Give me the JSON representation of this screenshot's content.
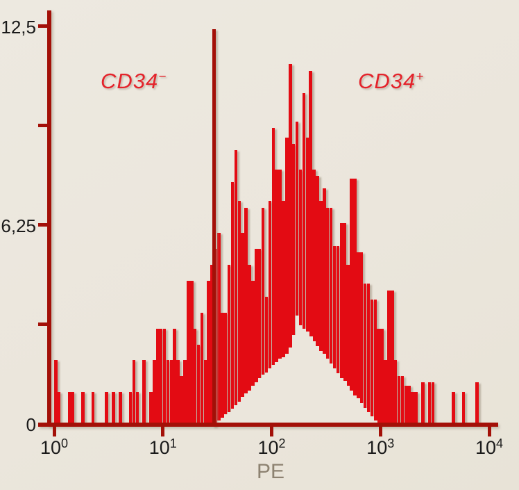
{
  "colors": {
    "background": "#ebe6dc",
    "bar_red": "#e30b13",
    "axis_dark_red": "#a31008",
    "label_red": "#e4232b",
    "tick_text": "#1a1a1a",
    "x_title_gray": "#8d8271"
  },
  "annotations": {
    "negative": {
      "base": "CD34",
      "sup": "−"
    },
    "positive": {
      "base": "CD34",
      "sup": "+"
    }
  },
  "axis_labels": {
    "x_title": "PE"
  },
  "chart_data": {
    "type": "bar",
    "subtype": "flow-cytometry-histogram",
    "title": "",
    "xlabel": "PE",
    "ylabel": "",
    "x_scale": "log10",
    "x_range_exponents": [
      0,
      4
    ],
    "ylim": [
      0,
      12.5
    ],
    "grid": false,
    "legend": "none",
    "y_ticks": [
      {
        "value": 12.5,
        "label": "12,5"
      },
      {
        "value": 9.375,
        "label": ""
      },
      {
        "value": 6.25,
        "label": "6,25"
      },
      {
        "value": 3.125,
        "label": ""
      },
      {
        "value": 0,
        "label": "0"
      }
    ],
    "x_ticks": [
      {
        "base": "10",
        "exponent": "0"
      },
      {
        "base": "10",
        "exponent": "1"
      },
      {
        "base": "10",
        "exponent": "2"
      },
      {
        "base": "10",
        "exponent": "3"
      },
      {
        "base": "10",
        "exponent": "4"
      }
    ],
    "gate": {
      "x_exponent": 1.47,
      "region_left_label": "CD34−",
      "region_right_label": "CD34+"
    },
    "channels_per_decade": 32,
    "series": [
      {
        "name": "PE fluorescence histogram (counts per channel)",
        "points": [
          [
            0,
            2
          ],
          [
            1,
            1
          ],
          [
            4,
            1
          ],
          [
            5,
            1
          ],
          [
            8,
            1
          ],
          [
            11,
            1
          ],
          [
            15,
            1
          ],
          [
            17,
            1
          ],
          [
            19,
            1
          ],
          [
            22,
            1
          ],
          [
            23,
            2
          ],
          [
            24,
            1
          ],
          [
            26,
            2
          ],
          [
            28,
            1
          ],
          [
            29,
            2
          ],
          [
            30,
            3
          ],
          [
            31,
            3
          ],
          [
            32,
            3
          ],
          [
            33,
            2
          ],
          [
            34,
            2
          ],
          [
            35,
            3
          ],
          [
            36,
            2
          ],
          [
            37,
            1.5
          ],
          [
            38,
            2
          ],
          [
            39,
            4.5
          ],
          [
            40,
            4.5
          ],
          [
            41,
            3
          ],
          [
            42,
            2.5
          ],
          [
            43,
            3.5
          ],
          [
            44,
            2
          ],
          [
            45,
            4.5
          ],
          [
            46,
            5
          ],
          [
            47,
            5.5
          ],
          [
            48,
            6
          ],
          [
            49,
            3.5
          ],
          [
            50,
            3.5
          ],
          [
            51,
            5
          ],
          [
            52,
            7.6
          ],
          [
            53,
            8.6
          ],
          [
            54,
            7
          ],
          [
            55,
            6
          ],
          [
            56,
            6.8
          ],
          [
            57,
            5
          ],
          [
            58,
            4.5
          ],
          [
            59,
            5.5
          ],
          [
            60,
            5.5
          ],
          [
            61,
            6.8
          ],
          [
            62,
            4
          ],
          [
            63,
            7
          ],
          [
            64,
            9.3
          ],
          [
            65,
            8
          ],
          [
            66,
            8
          ],
          [
            67,
            7
          ],
          [
            68,
            9
          ],
          [
            69,
            11.3
          ],
          [
            70,
            8.8
          ],
          [
            71,
            9.5
          ],
          [
            72,
            8
          ],
          [
            73,
            10.4
          ],
          [
            74,
            9
          ],
          [
            75,
            11.1
          ],
          [
            76,
            8
          ],
          [
            77,
            7.8
          ],
          [
            78,
            7
          ],
          [
            79,
            7.4
          ],
          [
            80,
            6.8
          ],
          [
            81,
            6.8
          ],
          [
            82,
            5.6
          ],
          [
            83,
            5.6
          ],
          [
            84,
            6.3
          ],
          [
            85,
            6.3
          ],
          [
            86,
            5
          ],
          [
            87,
            7.7
          ],
          [
            88,
            7.7
          ],
          [
            89,
            5.4
          ],
          [
            90,
            5.4
          ],
          [
            91,
            4.4
          ],
          [
            92,
            4.4
          ],
          [
            93,
            3.9
          ],
          [
            94,
            3.9
          ],
          [
            95,
            3
          ],
          [
            96,
            3
          ],
          [
            97,
            2
          ],
          [
            98,
            4.2
          ],
          [
            99,
            4.2
          ],
          [
            100,
            2
          ],
          [
            101,
            1.5
          ],
          [
            102,
            1.5
          ],
          [
            103,
            1.2
          ],
          [
            104,
            1.2
          ],
          [
            105,
            1
          ],
          [
            106,
            1
          ],
          [
            108,
            1.3
          ],
          [
            110,
            1.3
          ],
          [
            111,
            1.3
          ],
          [
            117,
            1
          ],
          [
            120,
            1
          ],
          [
            124,
            1.3
          ]
        ]
      }
    ],
    "background_overlay": {
      "name": "background-colored staircase under main peak",
      "points": [
        [
          48,
          0.1
        ],
        [
          49,
          0.2
        ],
        [
          50,
          0.3
        ],
        [
          51,
          0.38
        ],
        [
          52,
          0.48
        ],
        [
          53,
          0.58
        ],
        [
          54,
          0.7
        ],
        [
          55,
          0.85
        ],
        [
          56,
          0.95
        ],
        [
          57,
          1.05
        ],
        [
          58,
          1.2
        ],
        [
          59,
          1.3
        ],
        [
          60,
          1.45
        ],
        [
          61,
          1.55
        ],
        [
          62,
          1.62
        ],
        [
          63,
          1.75
        ],
        [
          64,
          1.85
        ],
        [
          65,
          1.95
        ],
        [
          66,
          2.05
        ],
        [
          67,
          2.1
        ],
        [
          68,
          2.2
        ],
        [
          69,
          2.4
        ],
        [
          70,
          2.8
        ],
        [
          71,
          3.4
        ],
        [
          72,
          3.1
        ],
        [
          73,
          3.0
        ],
        [
          74,
          2.9
        ],
        [
          75,
          2.75
        ],
        [
          76,
          2.6
        ],
        [
          77,
          2.45
        ],
        [
          78,
          2.3
        ],
        [
          79,
          2.2
        ],
        [
          80,
          2.05
        ],
        [
          81,
          1.9
        ],
        [
          82,
          1.75
        ],
        [
          83,
          1.6
        ],
        [
          84,
          1.45
        ],
        [
          85,
          1.35
        ],
        [
          86,
          1.2
        ],
        [
          87,
          1.05
        ],
        [
          88,
          0.9
        ],
        [
          89,
          0.8
        ],
        [
          90,
          0.65
        ],
        [
          91,
          0.5
        ],
        [
          92,
          0.38
        ],
        [
          93,
          0.25
        ],
        [
          94,
          0.12
        ]
      ]
    }
  }
}
